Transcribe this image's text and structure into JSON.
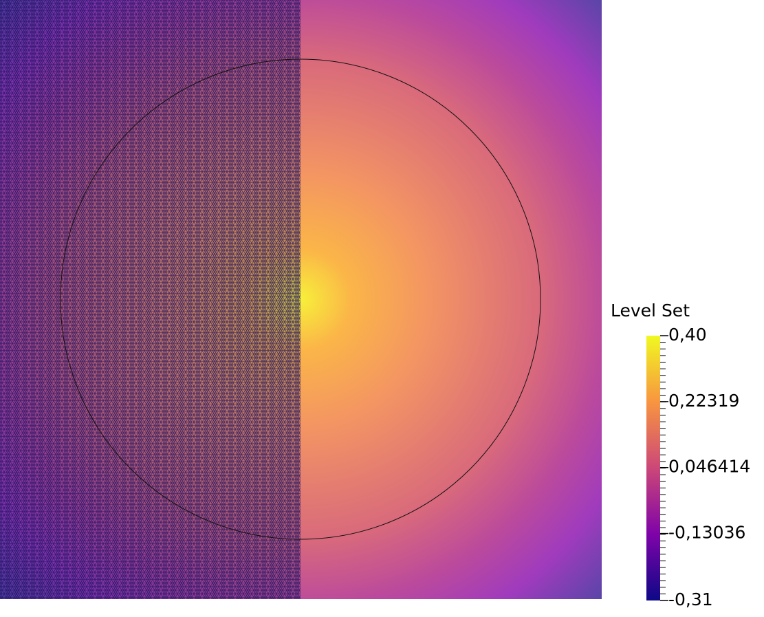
{
  "colorbar": {
    "title": "Level Set",
    "range": [
      -0.31,
      0.4
    ],
    "ticks": [
      {
        "value": 0.4,
        "label": "0,40"
      },
      {
        "value": 0.22319,
        "label": "0,22319"
      },
      {
        "value": 0.046414,
        "label": "0,046414"
      },
      {
        "value": -0.13036,
        "label": "-0,13036"
      },
      {
        "value": -0.31,
        "label": "-0,31"
      }
    ]
  }
}
